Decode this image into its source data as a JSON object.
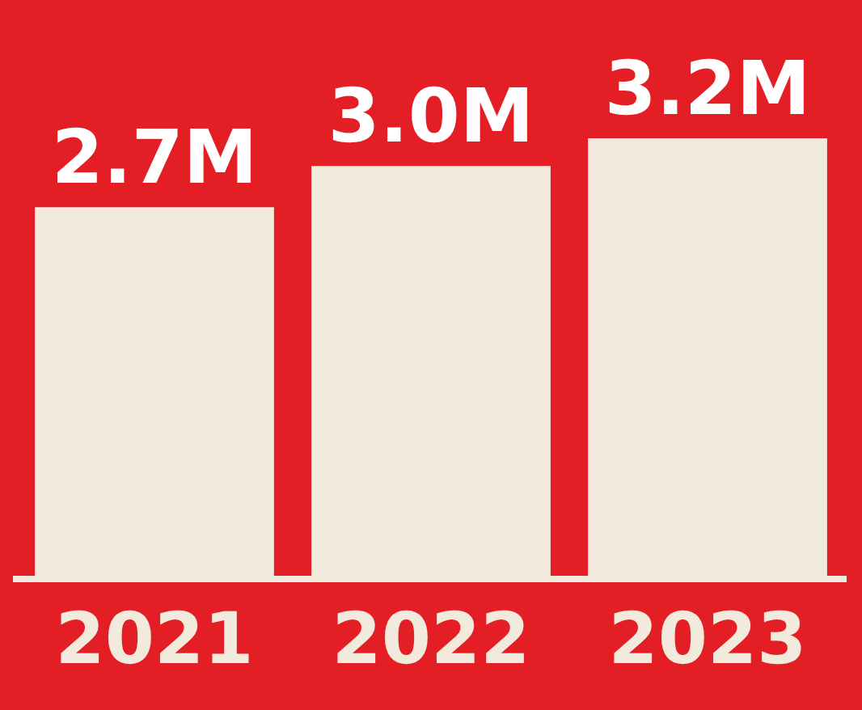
{
  "chart_data": {
    "type": "bar",
    "categories": [
      "2021",
      "2022",
      "2023"
    ],
    "values": [
      2.7,
      3.0,
      3.2
    ],
    "value_labels": [
      "2.7M",
      "3.0M",
      "3.2M"
    ],
    "color": "#f2eadc",
    "grid": false,
    "tick_labels": "x"
  }
}
